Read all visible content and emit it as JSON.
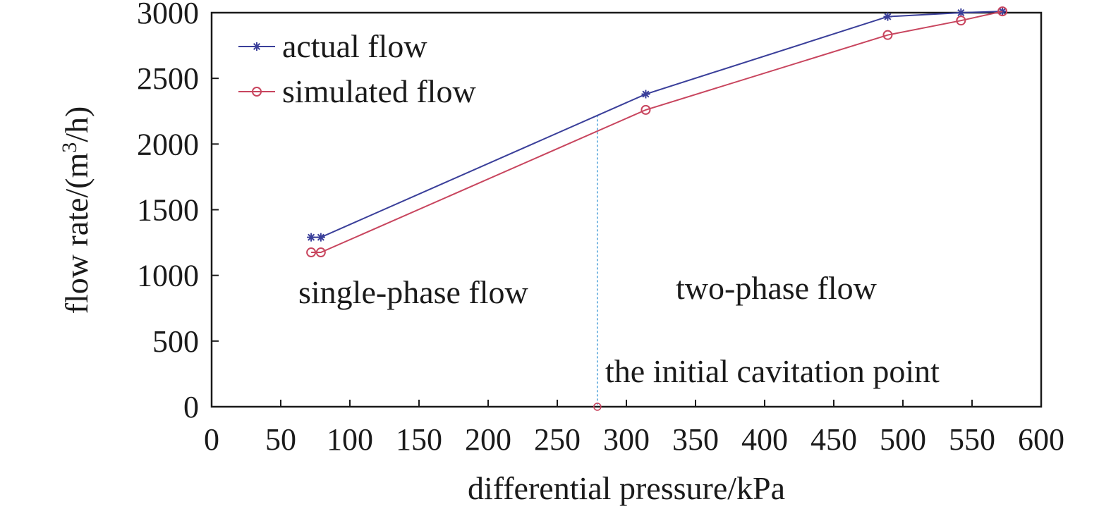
{
  "chart_data": {
    "type": "line",
    "xlabel": "differential pressure/kPa",
    "ylabel_main": "flow rate/(m",
    "ylabel_sup": "3",
    "ylabel_tail": "/h)",
    "xlim": [
      0,
      600
    ],
    "ylim": [
      0,
      3000
    ],
    "xticks": [
      0,
      50,
      100,
      150,
      200,
      250,
      300,
      350,
      400,
      450,
      500,
      550,
      600
    ],
    "yticks": [
      0,
      500,
      1000,
      1500,
      2000,
      2500,
      3000
    ],
    "grid": false,
    "legend_position": "top-left",
    "series": [
      {
        "name": "actual flow",
        "color": "#3a3f9a",
        "marker": "asterisk",
        "x": [
          72,
          79,
          314,
          489,
          542,
          572
        ],
        "y": [
          1290,
          1290,
          2380,
          2970,
          3000,
          3010
        ]
      },
      {
        "name": "simulated flow",
        "color": "#c8455e",
        "marker": "circle",
        "x": [
          72,
          79,
          314,
          489,
          542,
          572
        ],
        "y": [
          1175,
          1175,
          2260,
          2830,
          2940,
          3010
        ]
      }
    ],
    "annotations": {
      "single_phase": "single-phase flow",
      "two_phase": "two-phase flow",
      "cavitation_point": "the initial cavitation point"
    },
    "cavitation_x": 279,
    "cavitation_line_color": "#4a9fd8"
  }
}
